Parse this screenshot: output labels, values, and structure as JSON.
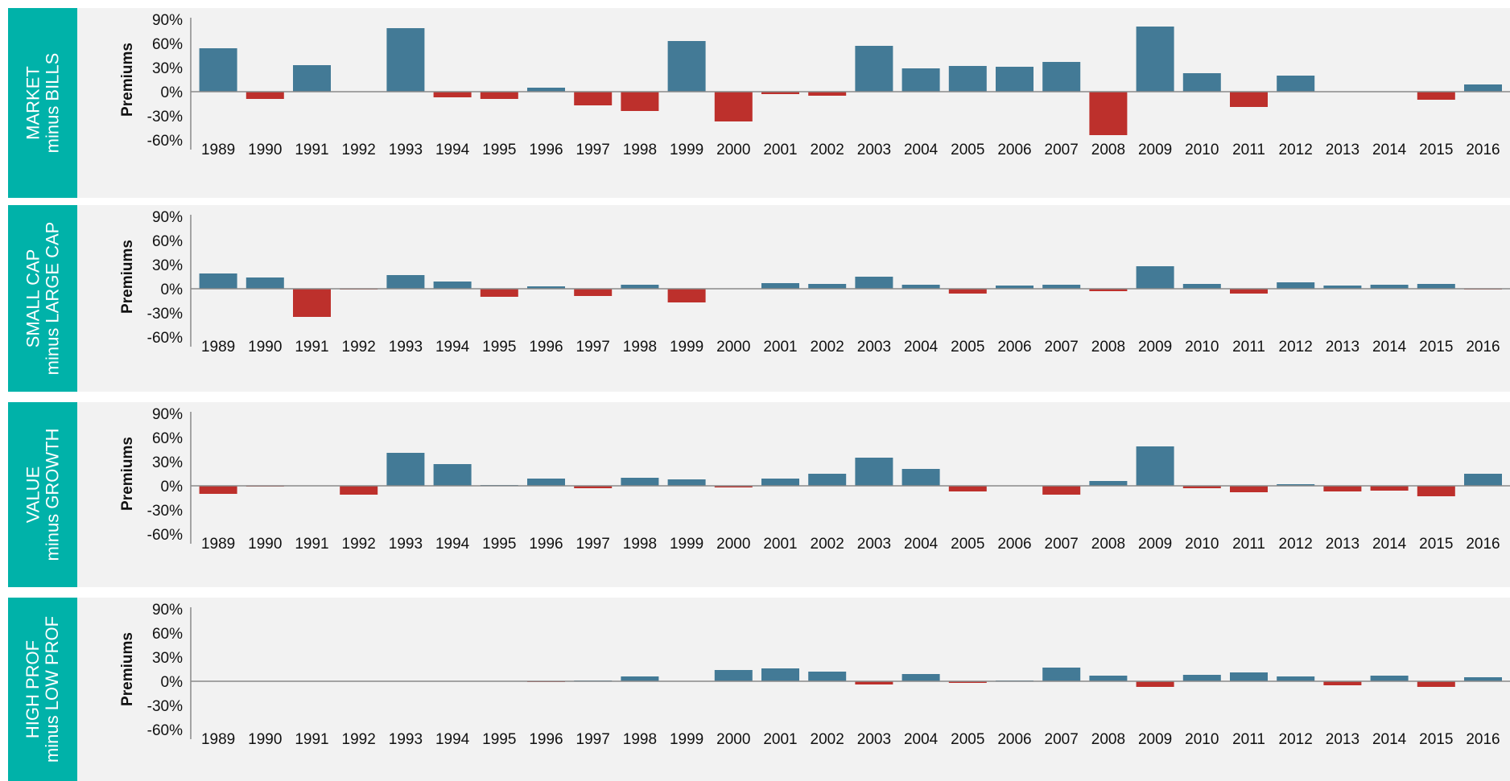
{
  "colors": {
    "tab": "#00b2a9",
    "positive": "#437a96",
    "negative": "#bd302c",
    "panel": "#f2f2f2"
  },
  "chart_data": [
    {
      "type": "bar",
      "tab_label": [
        "MARKET",
        "minus BILLS"
      ],
      "ylabel": "Premiums",
      "yticks": [
        "90%",
        "60%",
        "30%",
        "0%",
        "-30%",
        "-60%"
      ],
      "ylim": [
        -60,
        90
      ],
      "categories": [
        "1989",
        "1990",
        "1991",
        "1992",
        "1993",
        "1994",
        "1995",
        "1996",
        "1997",
        "1998",
        "1999",
        "2000",
        "2001",
        "2002",
        "2003",
        "2004",
        "2005",
        "2006",
        "2007",
        "2008",
        "2009",
        "2010",
        "2011",
        "2012",
        "2013",
        "2014",
        "2015",
        "2016"
      ],
      "values": [
        54,
        -9,
        33,
        0,
        79,
        -7,
        -9,
        5,
        -17,
        -24,
        63,
        -37,
        -3,
        -5,
        57,
        29,
        32,
        31,
        37,
        -54,
        81,
        23,
        -19,
        20,
        0,
        0,
        -10,
        9
      ]
    },
    {
      "type": "bar",
      "tab_label": [
        "SMALL CAP",
        "minus LARGE CAP"
      ],
      "ylabel": "Premiums",
      "yticks": [
        "90%",
        "60%",
        "30%",
        "0%",
        "-30%",
        "-60%"
      ],
      "ylim": [
        -60,
        90
      ],
      "categories": [
        "1989",
        "1990",
        "1991",
        "1992",
        "1993",
        "1994",
        "1995",
        "1996",
        "1997",
        "1998",
        "1999",
        "2000",
        "2001",
        "2002",
        "2003",
        "2004",
        "2005",
        "2006",
        "2007",
        "2008",
        "2009",
        "2010",
        "2011",
        "2012",
        "2013",
        "2014",
        "2015",
        "2016"
      ],
      "values": [
        19,
        14,
        -35,
        -1,
        17,
        9,
        -10,
        3,
        -9,
        5,
        -17,
        0,
        7,
        6,
        15,
        5,
        -6,
        4,
        5,
        -3,
        28,
        6,
        -6,
        8,
        4,
        5,
        6,
        -1
      ]
    },
    {
      "type": "bar",
      "tab_label": [
        "VALUE",
        "minus GROWTH"
      ],
      "ylabel": "Premiums",
      "yticks": [
        "90%",
        "60%",
        "30%",
        "0%",
        "-30%",
        "-60%"
      ],
      "ylim": [
        -60,
        90
      ],
      "categories": [
        "1989",
        "1990",
        "1991",
        "1992",
        "1993",
        "1994",
        "1995",
        "1996",
        "1997",
        "1998",
        "1999",
        "2000",
        "2001",
        "2002",
        "2003",
        "2004",
        "2005",
        "2006",
        "2007",
        "2008",
        "2009",
        "2010",
        "2011",
        "2012",
        "2013",
        "2014",
        "2015",
        "2016"
      ],
      "values": [
        -10,
        -1,
        0,
        -11,
        41,
        27,
        1,
        9,
        -3,
        10,
        8,
        -2,
        9,
        15,
        35,
        21,
        -7,
        0,
        -11,
        6,
        49,
        -3,
        -8,
        2,
        -7,
        -6,
        -13,
        15
      ]
    },
    {
      "type": "bar",
      "tab_label": [
        "HIGH PROF",
        "minus LOW PROF"
      ],
      "ylabel": "Premiums",
      "yticks": [
        "90%",
        "60%",
        "30%",
        "0%",
        "-30%",
        "-60%"
      ],
      "ylim": [
        -60,
        90
      ],
      "categories": [
        "1989",
        "1990",
        "1991",
        "1992",
        "1993",
        "1994",
        "1995",
        "1996",
        "1997",
        "1998",
        "1999",
        "2000",
        "2001",
        "2002",
        "2003",
        "2004",
        "2005",
        "2006",
        "2007",
        "2008",
        "2009",
        "2010",
        "2011",
        "2012",
        "2013",
        "2014",
        "2015",
        "2016"
      ],
      "values": [
        0,
        0,
        0,
        0,
        0,
        0,
        0,
        -1,
        1,
        6,
        0,
        14,
        16,
        12,
        -4,
        9,
        -2,
        1,
        17,
        7,
        -7,
        8,
        11,
        6,
        -5,
        7,
        -7,
        5
      ]
    }
  ]
}
